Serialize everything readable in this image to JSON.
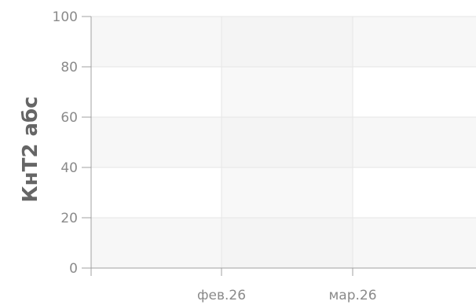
{
  "chart_data": {
    "type": "line",
    "title": "",
    "xlabel": "",
    "ylabel": "КнТ2 абс",
    "x_ticks": [
      "фев.26",
      "мар.26"
    ],
    "y_ticks": [
      0,
      20,
      40,
      60,
      80,
      100
    ],
    "ylim": [
      0,
      100
    ],
    "series": [],
    "grid": true,
    "legend": "none",
    "colors": {
      "band_light": "#f7f7f7",
      "band_white": "#ffffff",
      "vband": "#f2f2f2",
      "gridline": "#e6e6e6",
      "axis": "#a0a0a0",
      "tick_text": "#8a8a8a",
      "ylabel_text": "#666666"
    }
  }
}
